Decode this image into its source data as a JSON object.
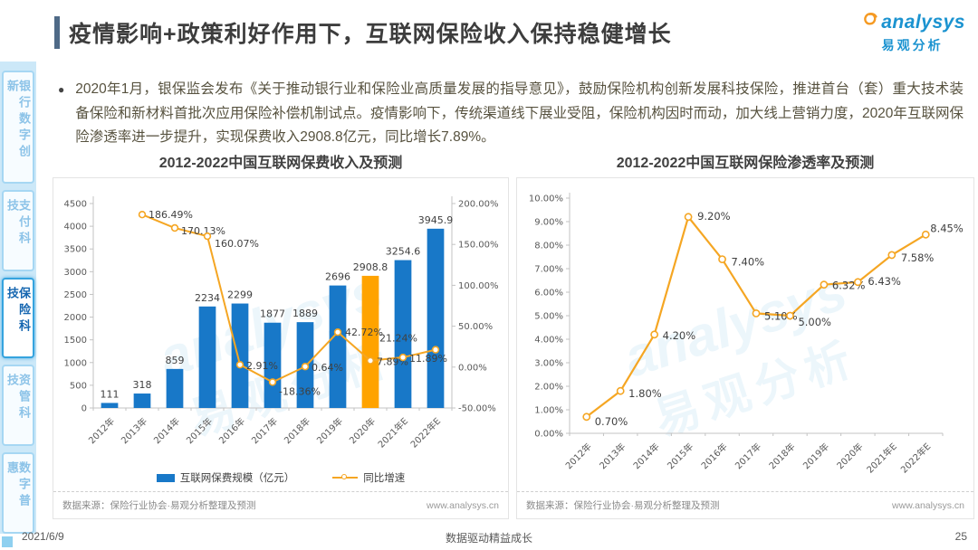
{
  "header": {
    "title": "疫情影响+政策利好作用下，互联网保险收入保持稳健增长",
    "logo": {
      "text": "analysys",
      "subtitle": "易观分析"
    }
  },
  "sidebar": {
    "items": [
      {
        "label": "银行数字创新",
        "active": false
      },
      {
        "label": "支付科技",
        "active": false
      },
      {
        "label": "保险科技",
        "active": true
      },
      {
        "label": "资管科技",
        "active": false
      },
      {
        "label": "数字普惠",
        "active": false
      }
    ]
  },
  "bullet_text": "2020年1月，银保监会发布《关于推动银行业和保险业高质量发展的指导意见》，鼓励保险机构创新发展科技保险，推进首台（套）重大技术装备保险和新材料首批次应用保险补偿机制试点。疫情影响下，传统渠道线下展业受阻，保险机构因时而动，加大线上营销力度，2020年互联网保险渗透率进一步提升，实现保费收入2908.8亿元，同比增长7.89%。",
  "watermark": {
    "text1": "analysys",
    "text2": "易观分析"
  },
  "footer": {
    "date": "2021/6/9",
    "slogan": "数据驱动精益成长",
    "page": "25"
  },
  "colors": {
    "bar_blue": "#1878c8",
    "bar_highlight_orange": "#ffa300",
    "line_orange": "#f5a623",
    "axis_gray": "#c3c3c3",
    "label_dark": "#404040",
    "sidebar_active_blue": "#1566b0"
  },
  "chart_data": [
    {
      "type": "bar",
      "title": "2012-2022中国互联网保费收入及预测",
      "categories": [
        "2012年",
        "2013年",
        "2014年",
        "2015年",
        "2016年",
        "2017年",
        "2018年",
        "2019年",
        "2020年",
        "2021年E",
        "2022年E"
      ],
      "series": [
        {
          "name": "互联网保费规模（亿元）",
          "type": "bar",
          "values": [
            111,
            318,
            859,
            2234,
            2299,
            1877,
            1889,
            2696,
            2908.8,
            3254.6,
            3945.9
          ],
          "color": "#1878c8",
          "highlight": {
            "index": 8,
            "color": "#ffa300"
          }
        },
        {
          "name": "同比增速",
          "type": "line",
          "values": [
            null,
            186.49,
            170.13,
            160.07,
            2.91,
            -18.36,
            0.64,
            42.72,
            7.89,
            11.89,
            21.24
          ],
          "color": "#f5a623",
          "suffix": "%",
          "label_offsets": [
            null,
            [
              7,
              4
            ],
            [
              7,
              7
            ],
            [
              8,
              12
            ],
            [
              7,
              5
            ],
            [
              7,
              14
            ],
            [
              7,
              5
            ],
            [
              8,
              4
            ],
            [
              7,
              5
            ],
            [
              7,
              5
            ],
            [
              -62,
              -9
            ]
          ]
        }
      ],
      "axis_left": {
        "min": 0,
        "max": 4500,
        "step": 500
      },
      "axis_right": {
        "min": -50,
        "max": 200,
        "step": 50,
        "suffix": "%",
        "decimals": 2
      },
      "legend_position": "bottom",
      "grid": false,
      "source": "数据来源：保险行业协会·易观分析整理及预测",
      "website": "www.analysys.cn"
    },
    {
      "type": "line",
      "title": "2012-2022中国互联网保险渗透率及预测",
      "categories": [
        "2012年",
        "2013年",
        "2014年",
        "2015年",
        "2016年",
        "2017年",
        "2018年",
        "2019年",
        "2020年",
        "2021年E",
        "2022年E"
      ],
      "series": [
        {
          "name": "互联网保险渗透率",
          "type": "line",
          "values": [
            0.7,
            1.8,
            4.2,
            9.2,
            7.4,
            5.1,
            5.0,
            6.32,
            6.43,
            7.58,
            8.45
          ],
          "color": "#f5a623",
          "suffix": "%",
          "label_offsets": [
            [
              9,
              9
            ],
            [
              9,
              7
            ],
            [
              9,
              5
            ],
            [
              10,
              3
            ],
            [
              10,
              7
            ],
            [
              9,
              7
            ],
            [
              9,
              11
            ],
            [
              9,
              5
            ],
            [
              11,
              3
            ],
            [
              10,
              7
            ],
            [
              5,
              -3
            ]
          ]
        }
      ],
      "axis_left": {
        "min": 0,
        "max": 10,
        "step": 1,
        "suffix": "%",
        "decimals": 2
      },
      "grid": false,
      "source": "数据来源：保险行业协会·易观分析整理及预测",
      "website": "www.analysys.cn"
    }
  ]
}
